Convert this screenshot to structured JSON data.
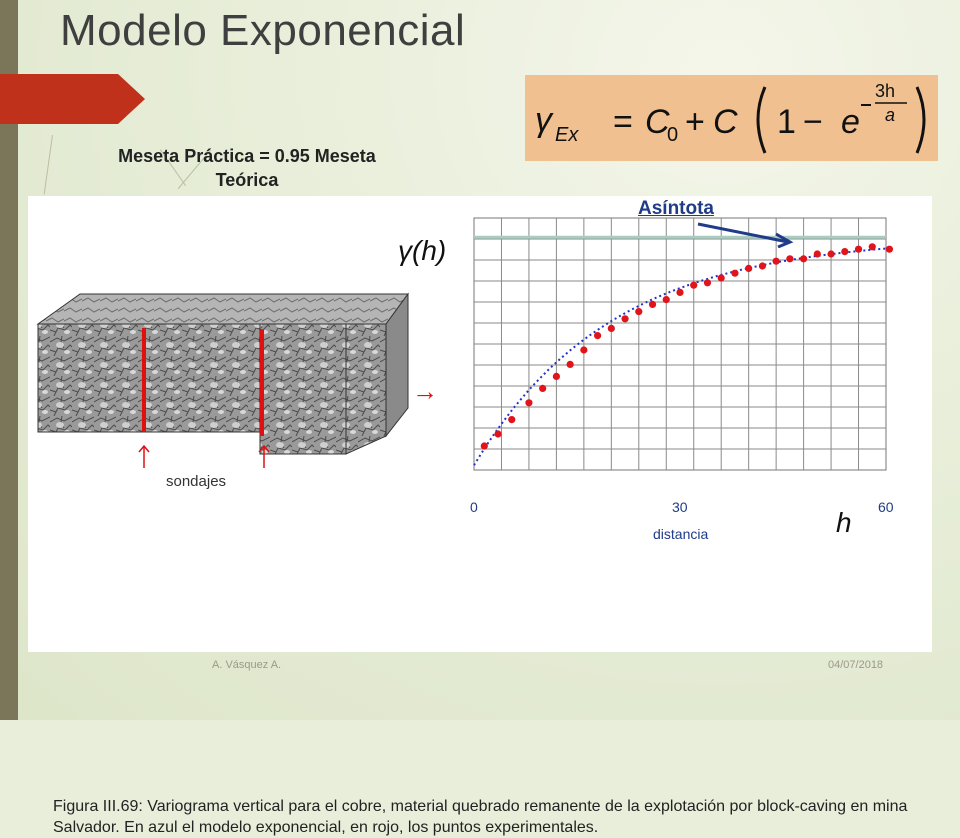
{
  "slide": {
    "title": "Modelo Exponencial",
    "subtitle_line1": "Meseta Práctica = 0.95 Meseta",
    "subtitle_line2": "Teórica",
    "annotation": "Asíntota",
    "footer_author": "A. Vásquez A.",
    "footer_date": "04/07/2018"
  },
  "formula": {
    "lhs": "γ",
    "lhs_sub": "Ex",
    "equals": "=",
    "c0": "C",
    "c0_sub": "0",
    "plus": "+",
    "c": "C",
    "one": "1",
    "minus": "−",
    "e": "e",
    "exp_num": "3h",
    "exp_den": "a"
  },
  "figure": {
    "block_label": "sondajes",
    "arrow_symbol": "→",
    "y_axis_label": "γ(h)",
    "x_axis_var": "h",
    "x_axis_label": "distancia",
    "x_ticks": [
      "0",
      "30",
      "60"
    ],
    "caption": "Figura III.69: Variograma vertical para el cobre, material quebrado remanente de la explotación por block-caving en mina Salvador. En azul el modelo exponencial, en rojo, los puntos experimentales."
  },
  "colors": {
    "accent_red": "#c0311b",
    "sill_line": "#a9cbc0",
    "model_line": "#2433c4",
    "points": "#e0141a",
    "annotation": "#1f3b8a",
    "formula_bg": "#f0c090"
  },
  "chart_data": {
    "type": "scatter",
    "xlim": [
      0,
      60
    ],
    "ylim": [
      0,
      1.05
    ],
    "grid": true,
    "series": [
      {
        "type": "scatter",
        "x": [
          1.5,
          3.5,
          5.5,
          8.0,
          10.0,
          12.0,
          14.0,
          16.0,
          18.0,
          20.0,
          22.0,
          24.0,
          26.0,
          28.0,
          30.0,
          32.0,
          34.0,
          36.0,
          38.0,
          40.0,
          42.0,
          44.0,
          46.0,
          48.0,
          50.0,
          52.0,
          54.0,
          56.0,
          58.0,
          60.5
        ],
        "y": [
          0.1,
          0.15,
          0.21,
          0.28,
          0.34,
          0.39,
          0.44,
          0.5,
          0.56,
          0.59,
          0.63,
          0.66,
          0.69,
          0.71,
          0.74,
          0.77,
          0.78,
          0.8,
          0.82,
          0.84,
          0.85,
          0.87,
          0.88,
          0.88,
          0.9,
          0.9,
          0.91,
          0.92,
          0.93,
          0.92
        ]
      },
      {
        "type": "line",
        "model": "exponential",
        "nugget": 0.02,
        "sill_contribution": 0.95,
        "range": 60
      }
    ],
    "sill": 0.97
  }
}
